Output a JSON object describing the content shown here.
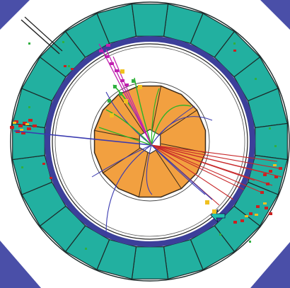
{
  "scene": {
    "subject": "particle-collision-event-display",
    "colors": {
      "background": "#ffffff",
      "corner": "#4a4fa8",
      "muon_segment": "#22b0a0",
      "segment_outline": "#1d2a2a",
      "coil": "#3c3f9a",
      "calorimeter": "#f2a040",
      "calorimeter_outline": "#3a2a1a",
      "core": "#ffffff",
      "track_blue": "#3a3ab0",
      "track_red": "#c8282a",
      "track_green": "#28b428",
      "track_magenta": "#c020b0",
      "hit_red": "#cc2020",
      "hit_yellow": "#f0c020",
      "hit_green": "#30b040"
    }
  }
}
